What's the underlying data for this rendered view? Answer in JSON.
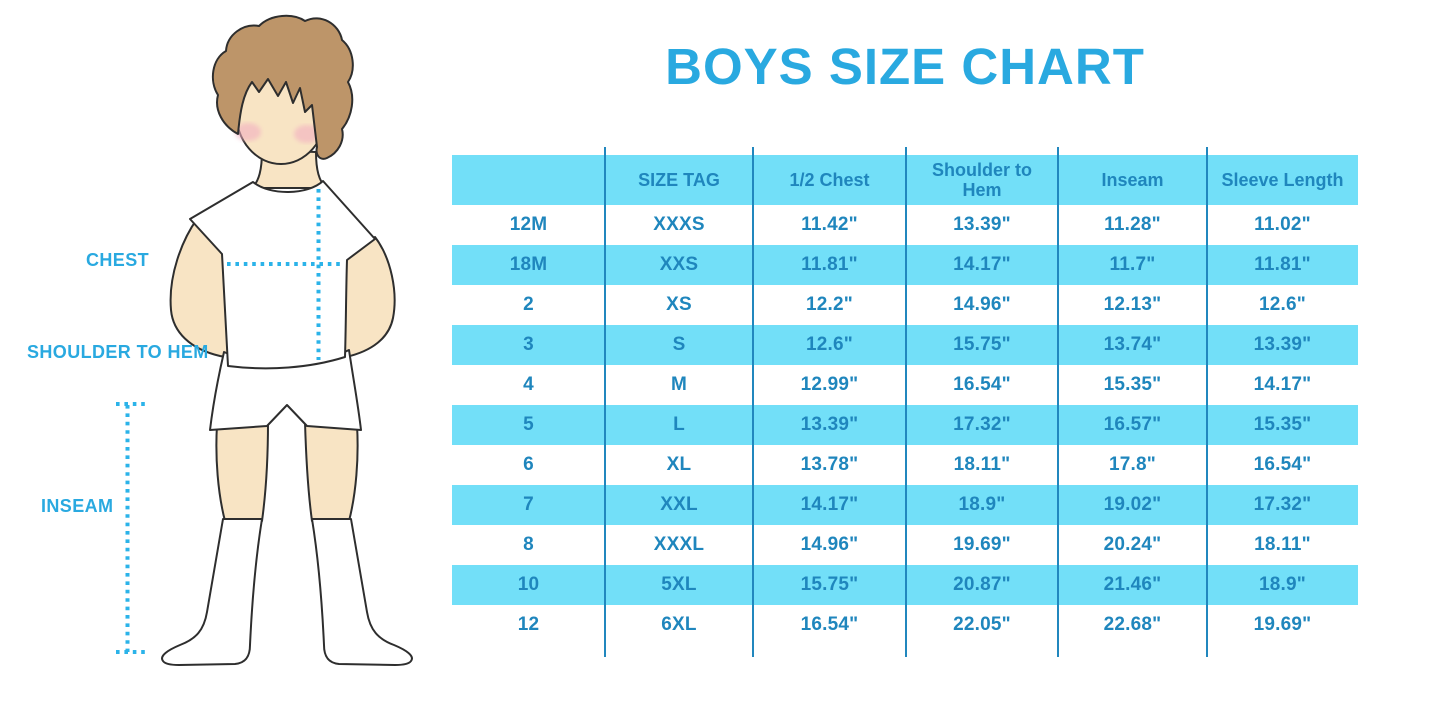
{
  "title": "BOYS SIZE CHART",
  "figure": {
    "description": "boy-with-measurement-lines",
    "labels": {
      "chest": "CHEST",
      "shoulder_to_hem": "SHOULDER TO HEM",
      "inseam": "INSEAM"
    }
  },
  "colors": {
    "accent": "#29A9E0",
    "table_stripe": "#72DFF8",
    "table_line": "#2187BE",
    "table_text": "#1F86BD",
    "dotted_line": "#2BB3E9",
    "skin": "#F8E4C4",
    "hair": "#BD9569",
    "blush": "#F2AFC1",
    "outline": "#2E2E2E",
    "garment": "#FFFFFF"
  },
  "chart_data": {
    "type": "table",
    "title": "BOYS SIZE CHART",
    "columns": [
      "",
      "SIZE TAG",
      "1/2 Chest",
      "Shoulder to Hem",
      "Inseam",
      "Sleeve Length"
    ],
    "rows": [
      [
        "12M",
        "XXXS",
        "11.42\"",
        "13.39\"",
        "11.28\"",
        "11.02\""
      ],
      [
        "18M",
        "XXS",
        "11.81\"",
        "14.17\"",
        "11.7\"",
        "11.81\""
      ],
      [
        "2",
        "XS",
        "12.2\"",
        "14.96\"",
        "12.13\"",
        "12.6\""
      ],
      [
        "3",
        "S",
        "12.6\"",
        "15.75\"",
        "13.74\"",
        "13.39\""
      ],
      [
        "4",
        "M",
        "12.99\"",
        "16.54\"",
        "15.35\"",
        "14.17\""
      ],
      [
        "5",
        "L",
        "13.39\"",
        "17.32\"",
        "16.57\"",
        "15.35\""
      ],
      [
        "6",
        "XL",
        "13.78\"",
        "18.11\"",
        "17.8\"",
        "16.54\""
      ],
      [
        "7",
        "XXL",
        "14.17\"",
        "18.9\"",
        "19.02\"",
        "17.32\""
      ],
      [
        "8",
        "XXXL",
        "14.96\"",
        "19.69\"",
        "20.24\"",
        "18.11\""
      ],
      [
        "10",
        "5XL",
        "15.75\"",
        "20.87\"",
        "21.46\"",
        "18.9\""
      ],
      [
        "12",
        "6XL",
        "16.54\"",
        "22.05\"",
        "22.68\"",
        "19.69\""
      ]
    ],
    "row_striping": "alternating light-blue / white, header light-blue",
    "legend_position": "none",
    "grid": "vertical column dividers only"
  }
}
